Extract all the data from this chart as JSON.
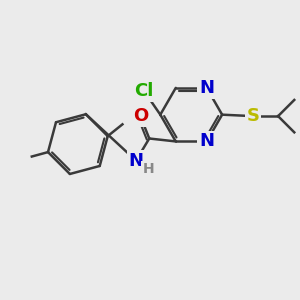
{
  "bg_color": "#ebebeb",
  "bond_color": "#3a3a3a",
  "bond_width": 1.8,
  "atom_colors": {
    "Cl": "#22aa00",
    "N": "#0000cc",
    "O": "#cc0000",
    "S": "#bbbb00",
    "H": "#888888",
    "C": "#3a3a3a"
  },
  "font_size_atoms": 13,
  "font_size_H": 10
}
